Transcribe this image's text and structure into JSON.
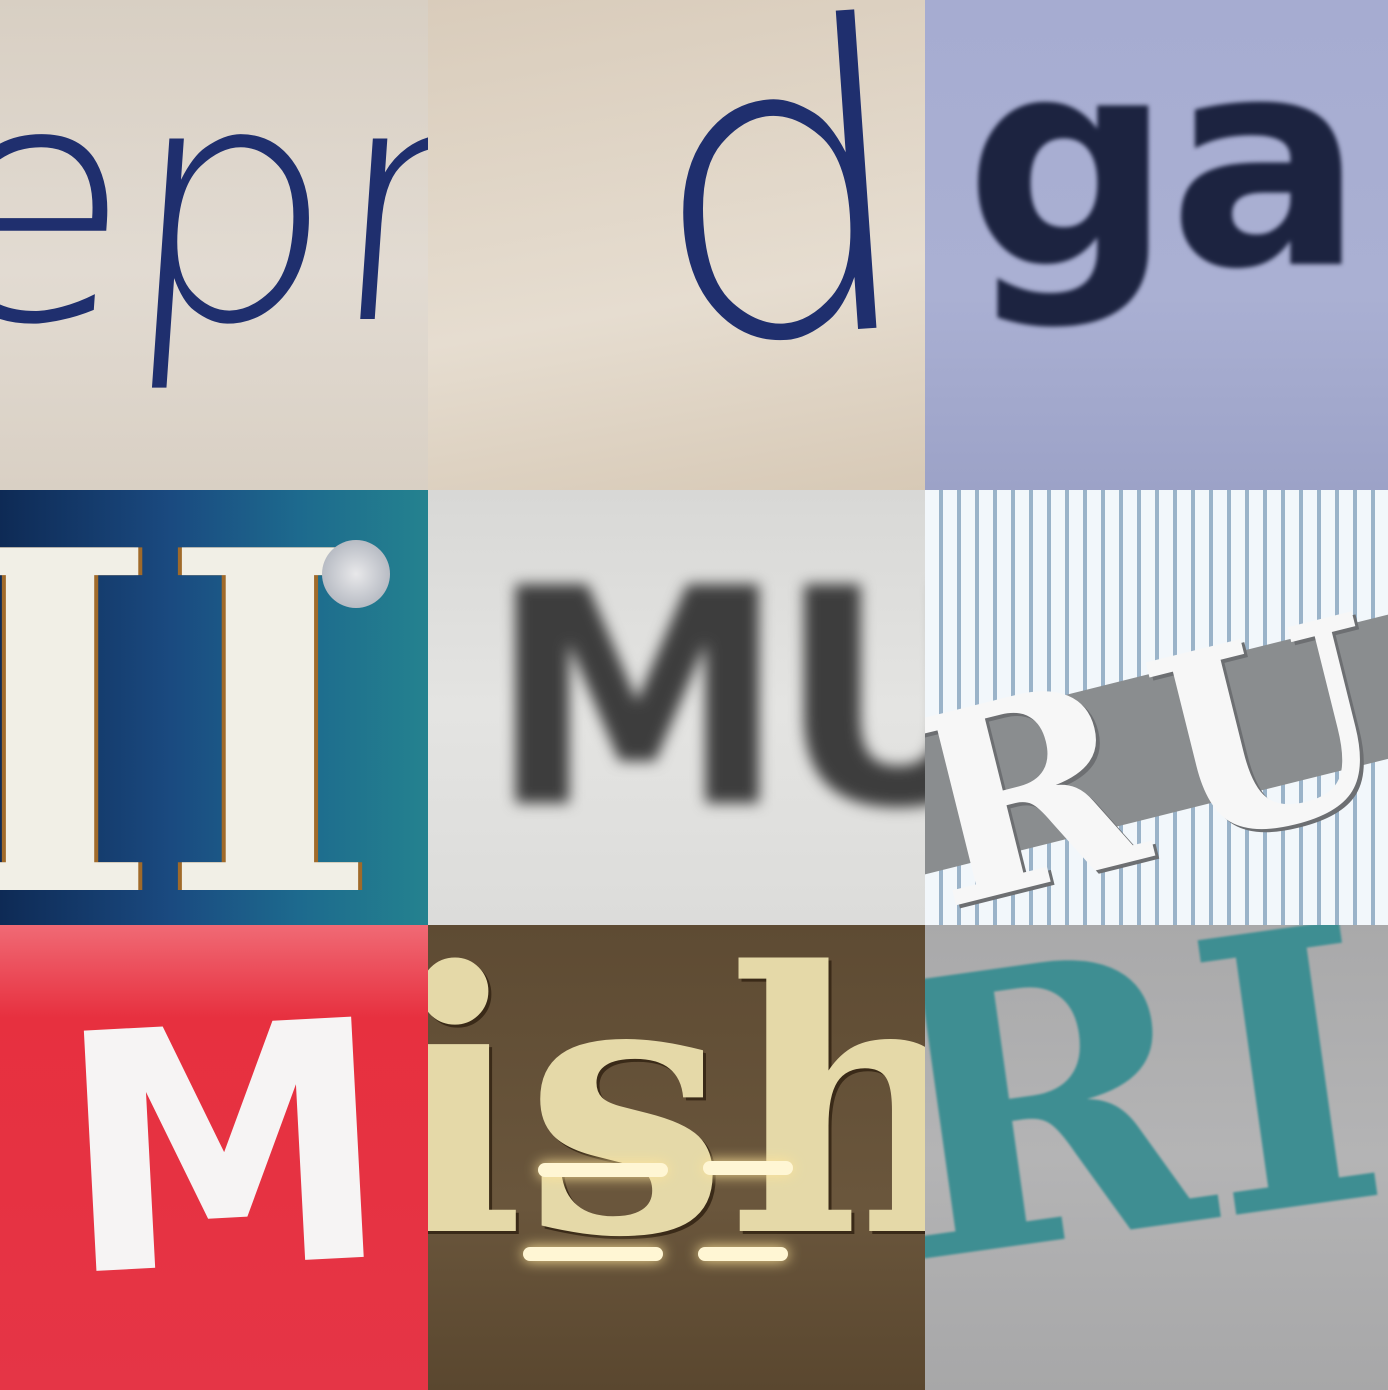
{
  "tiles": [
    {
      "id": "tile-1",
      "text": "epr"
    },
    {
      "id": "tile-2",
      "text": "d"
    },
    {
      "id": "tile-3",
      "text": "ga"
    },
    {
      "id": "tile-4",
      "text": "II"
    },
    {
      "id": "tile-5",
      "text": "MU"
    },
    {
      "id": "tile-6",
      "text": "RU"
    },
    {
      "id": "tile-7",
      "text": "M"
    },
    {
      "id": "tile-8",
      "text": "ish"
    },
    {
      "id": "tile-9",
      "text": "RI"
    }
  ],
  "colors": {
    "navy_ink": "#1f2f6e",
    "dark_ink": "#1c2340",
    "teal_ink": "#3e8e92",
    "red_sign": "#e53546",
    "gold_letters": "#e5d9a8"
  }
}
